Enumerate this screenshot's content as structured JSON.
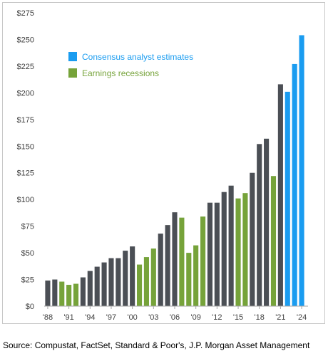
{
  "chart_data": {
    "type": "bar",
    "title": "",
    "xlabel": "",
    "ylabel": "",
    "ylim": [
      0,
      275
    ],
    "yticks": [
      0,
      25,
      50,
      75,
      100,
      125,
      150,
      175,
      200,
      225,
      250,
      275
    ],
    "ytick_labels": [
      "$0",
      "$25",
      "$50",
      "$75",
      "$100",
      "$125",
      "$150",
      "$175",
      "$200",
      "$225",
      "$250",
      "$275"
    ],
    "xtick_labels": [
      "'88",
      "'91",
      "'94",
      "'97",
      "'00",
      "'03",
      "'06",
      "'09",
      "'12",
      "'15",
      "'18",
      "'21",
      "'24"
    ],
    "grid": false,
    "legend_position": "upper-left",
    "legend": [
      {
        "label": "Consensus analyst estimates",
        "color": "#1a9cf0"
      },
      {
        "label": "Earnings recessions",
        "color": "#76a33a"
      }
    ],
    "colors": {
      "actual": "#4b4f55",
      "estimate": "#1a9cf0",
      "recession": "#76a33a"
    },
    "categories": [
      "1988",
      "1989",
      "1990",
      "1991",
      "1992",
      "1993",
      "1994",
      "1995",
      "1996",
      "1997",
      "1998",
      "1999",
      "2000",
      "2001",
      "2002",
      "2003",
      "2004",
      "2005",
      "2006",
      "2007",
      "2008",
      "2009",
      "2010",
      "2011",
      "2012",
      "2013",
      "2014",
      "2015",
      "2016",
      "2017",
      "2018",
      "2019",
      "2020",
      "2021",
      "2022",
      "2023",
      "2024"
    ],
    "values": [
      24,
      25,
      23,
      20,
      21,
      27,
      33,
      37,
      41,
      45,
      45,
      52,
      56,
      39,
      46,
      54,
      68,
      76,
      88,
      83,
      50,
      57,
      84,
      97,
      97,
      107,
      113,
      101,
      106,
      125,
      152,
      157,
      122,
      208,
      201,
      227,
      254
    ],
    "bar_types": [
      "actual",
      "actual",
      "recession",
      "recession",
      "recession",
      "actual",
      "actual",
      "actual",
      "actual",
      "actual",
      "actual",
      "actual",
      "actual",
      "recession",
      "recession",
      "recession",
      "actual",
      "actual",
      "actual",
      "recession",
      "recession",
      "recession",
      "recession",
      "actual",
      "actual",
      "actual",
      "actual",
      "recession",
      "recession",
      "actual",
      "actual",
      "actual",
      "recession",
      "actual",
      "estimate",
      "estimate",
      "estimate"
    ]
  },
  "source_text": "Source: Compustat, FactSet, Standard & Poor's, J.P. Morgan Asset Management"
}
